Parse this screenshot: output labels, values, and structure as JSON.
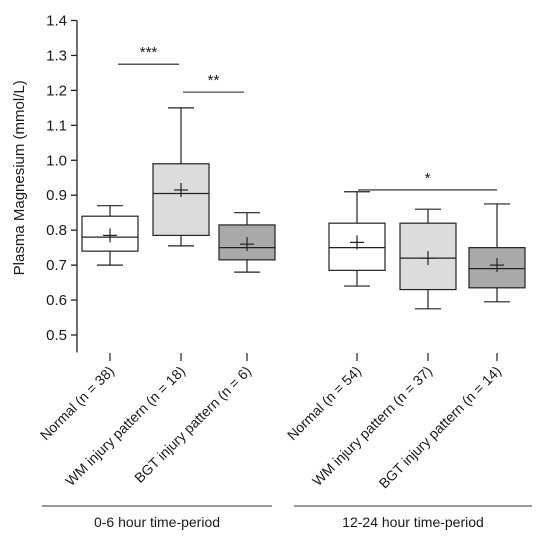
{
  "chart_data": {
    "type": "box",
    "ylabel": "Plasma Magnesium (mmol/L)",
    "ylim": [
      0.45,
      1.4
    ],
    "yticks": [
      0.5,
      0.6,
      0.7,
      0.8,
      0.9,
      1.0,
      1.1,
      1.2,
      1.3,
      1.4
    ],
    "ytick_labels": [
      "0.5",
      "0.6",
      "0.7",
      "0.8",
      "0.9",
      "1.0",
      "1.1",
      "1.2",
      "1.3",
      "1.4"
    ],
    "boxes": [
      {
        "label": "Normal (n = 38)",
        "group": 0,
        "whisker_low": 0.7,
        "q1": 0.74,
        "median": 0.78,
        "q3": 0.84,
        "whisker_high": 0.87,
        "mean": 0.785,
        "fill": "#ffffff"
      },
      {
        "label": "WM injury pattern (n = 18)",
        "group": 0,
        "whisker_low": 0.755,
        "q1": 0.785,
        "median": 0.905,
        "q3": 0.99,
        "whisker_high": 1.15,
        "mean": 0.915,
        "fill": "#dcdcdc"
      },
      {
        "label": "BGT injury pattern (n = 6)",
        "group": 0,
        "whisker_low": 0.68,
        "q1": 0.715,
        "median": 0.75,
        "q3": 0.815,
        "whisker_high": 0.85,
        "mean": 0.76,
        "fill": "#a9a9a9"
      },
      {
        "label": "Normal (n = 54)",
        "group": 1,
        "whisker_low": 0.64,
        "q1": 0.685,
        "median": 0.75,
        "q3": 0.82,
        "whisker_high": 0.91,
        "mean": 0.765,
        "fill": "#ffffff"
      },
      {
        "label": "WM injury pattern (n = 37)",
        "group": 1,
        "whisker_low": 0.575,
        "q1": 0.63,
        "median": 0.72,
        "q3": 0.82,
        "whisker_high": 0.86,
        "mean": 0.72,
        "fill": "#dcdcdc"
      },
      {
        "label": "BGT injury pattern (n = 14)",
        "group": 1,
        "whisker_low": 0.595,
        "q1": 0.635,
        "median": 0.69,
        "q3": 0.75,
        "whisker_high": 0.875,
        "mean": 0.7,
        "fill": "#a9a9a9"
      }
    ],
    "groups": [
      {
        "label": "0-6 hour time-period"
      },
      {
        "label": "12-24 hour time-period"
      }
    ],
    "significance": [
      {
        "from": 0,
        "to": 1,
        "y": 1.275,
        "label": "***"
      },
      {
        "from": 1,
        "to": 2,
        "y": 1.195,
        "label": "**"
      },
      {
        "from": 3,
        "to": 5,
        "y": 0.915,
        "label": "*"
      }
    ]
  }
}
